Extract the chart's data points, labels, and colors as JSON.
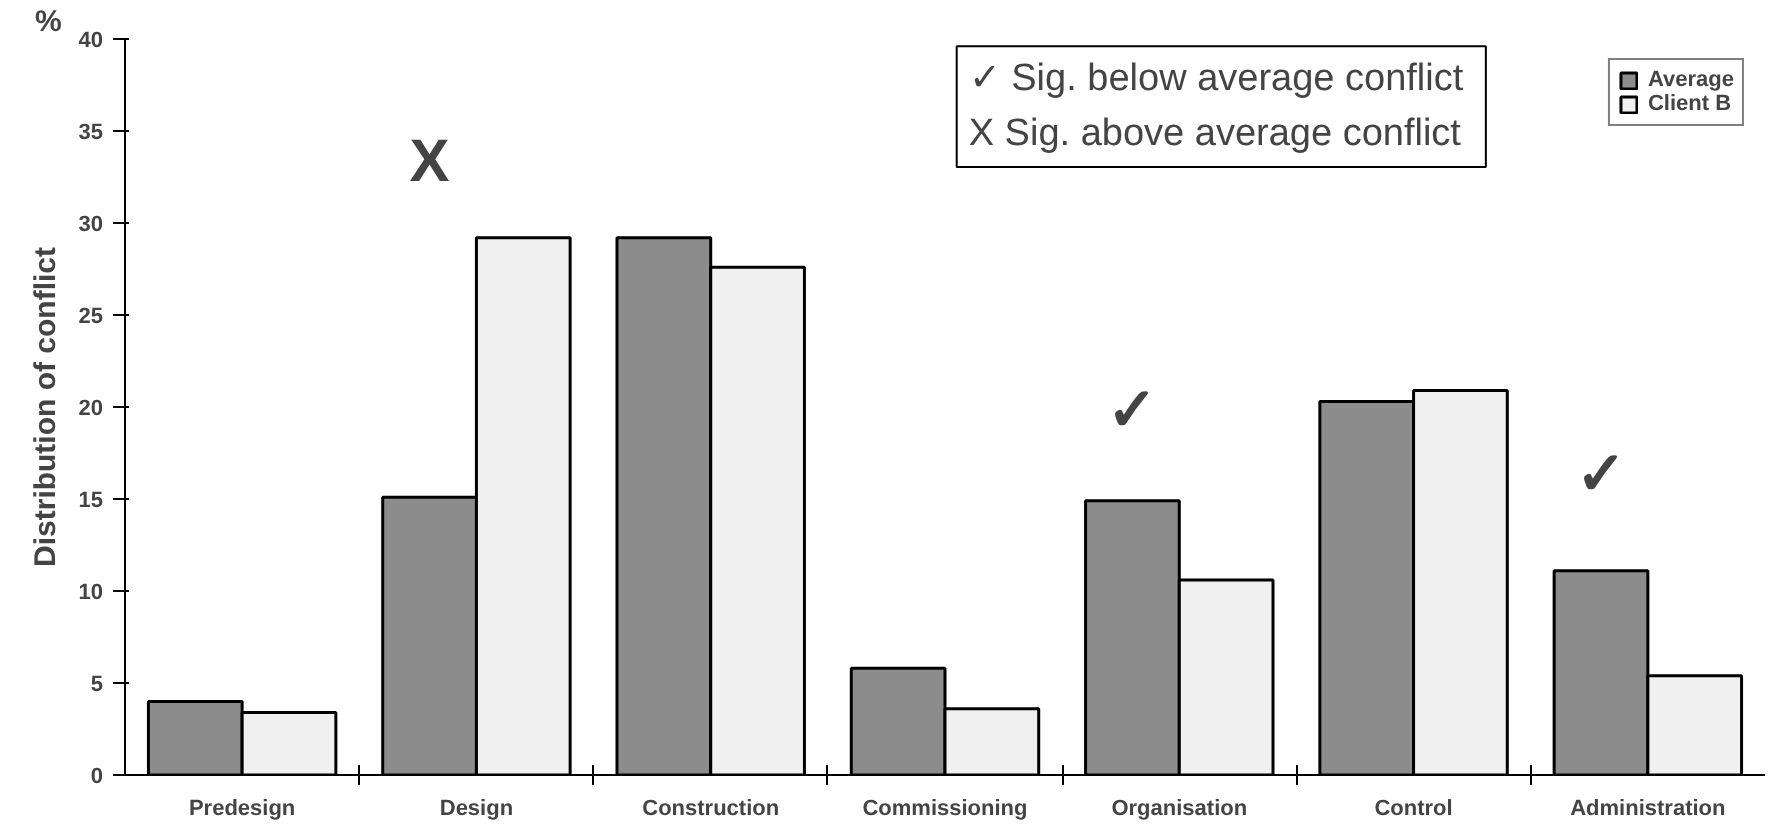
{
  "chart_data": {
    "type": "bar",
    "ylabel": "Distribution of conflict",
    "categories": [
      "Predesign",
      "Design",
      "Construction",
      "Commissioning",
      "Organisation",
      "Control",
      "Administration"
    ],
    "series": [
      {
        "name": "Average",
        "color": "#8c8c8c",
        "values": [
          4.0,
          15.1,
          29.2,
          5.8,
          14.9,
          20.3,
          11.1
        ]
      },
      {
        "name": "Client B",
        "color": "#f0f0f0",
        "values": [
          3.4,
          29.2,
          27.6,
          3.6,
          10.6,
          20.9,
          5.4
        ]
      }
    ],
    "ylim": [
      0,
      40
    ],
    "yticks": [
      0,
      5,
      10,
      15,
      20,
      25,
      30,
      35,
      40
    ],
    "grid": false,
    "legend": "top right",
    "annotations": [
      "%",
      "✓  Sig. below average conflict",
      "X  Sig. above average conflict",
      "X",
      "✓",
      "✓"
    ]
  }
}
